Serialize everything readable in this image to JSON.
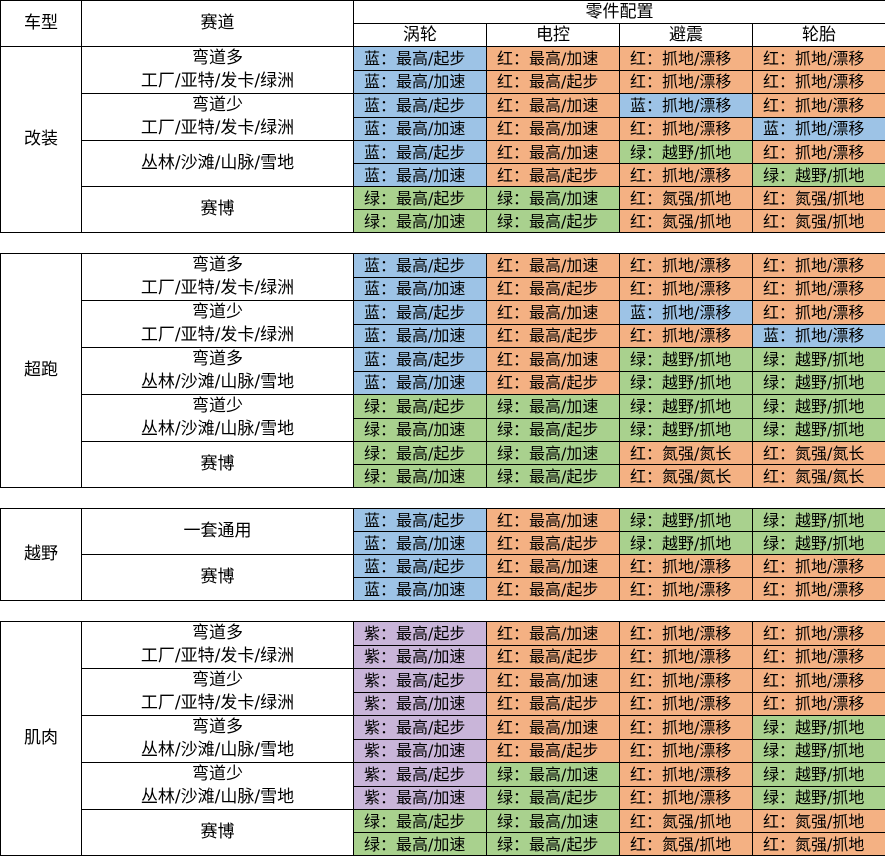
{
  "header": {
    "col_type": "车型",
    "col_track": "赛道",
    "col_parts": "零件配置",
    "parts": [
      "涡轮",
      "电控",
      "避震",
      "轮胎"
    ]
  },
  "sections": [
    {
      "name": "改装",
      "groups": [
        {
          "track": [
            "弯道多",
            "工厂/亚特/发卡/绿洲"
          ],
          "rows": [
            [
              [
                "blue",
                "蓝",
                "最高/起步"
              ],
              [
                "red",
                "红",
                "最高/加速"
              ],
              [
                "red",
                "红",
                "抓地/漂移"
              ],
              [
                "red",
                "红",
                "抓地/漂移"
              ]
            ],
            [
              [
                "blue",
                "蓝",
                "最高/加速"
              ],
              [
                "red",
                "红",
                "最高/起步"
              ],
              [
                "red",
                "红",
                "抓地/漂移"
              ],
              [
                "red",
                "红",
                "抓地/漂移"
              ]
            ]
          ]
        },
        {
          "track": [
            "弯道少",
            "工厂/亚特/发卡/绿洲"
          ],
          "rows": [
            [
              [
                "blue",
                "蓝",
                "最高/起步"
              ],
              [
                "red",
                "红",
                "最高/加速"
              ],
              [
                "blue",
                "蓝",
                "抓地/漂移"
              ],
              [
                "red",
                "红",
                "抓地/漂移"
              ]
            ],
            [
              [
                "blue",
                "蓝",
                "最高/加速"
              ],
              [
                "red",
                "红",
                "最高/加速"
              ],
              [
                "red",
                "红",
                "抓地/漂移"
              ],
              [
                "blue",
                "蓝",
                "抓地/漂移"
              ]
            ]
          ]
        },
        {
          "track": [
            "丛林/沙滩/山脉/雪地"
          ],
          "rows": [
            [
              [
                "blue",
                "蓝",
                "最高/起步"
              ],
              [
                "red",
                "红",
                "最高/加速"
              ],
              [
                "green",
                "绿",
                "越野/抓地"
              ],
              [
                "red",
                "红",
                "抓地/漂移"
              ]
            ],
            [
              [
                "blue",
                "蓝",
                "最高/加速"
              ],
              [
                "red",
                "红",
                "最高/起步"
              ],
              [
                "red",
                "红",
                "抓地/漂移"
              ],
              [
                "green",
                "绿",
                "越野/抓地"
              ]
            ]
          ]
        },
        {
          "track": [
            "赛博"
          ],
          "rows": [
            [
              [
                "green",
                "绿",
                "最高/起步"
              ],
              [
                "green",
                "绿",
                "最高/加速"
              ],
              [
                "red",
                "红",
                "氮强/抓地"
              ],
              [
                "red",
                "红",
                "氮强/抓地"
              ]
            ],
            [
              [
                "green",
                "绿",
                "最高/加速"
              ],
              [
                "green",
                "绿",
                "最高/起步"
              ],
              [
                "red",
                "红",
                "氮强/抓地"
              ],
              [
                "red",
                "红",
                "氮强/抓地"
              ]
            ]
          ]
        }
      ]
    },
    {
      "name": "超跑",
      "groups": [
        {
          "track": [
            "弯道多",
            "工厂/亚特/发卡/绿洲"
          ],
          "rows": [
            [
              [
                "blue",
                "蓝",
                "最高/起步"
              ],
              [
                "red",
                "红",
                "最高/加速"
              ],
              [
                "red",
                "红",
                "抓地/漂移"
              ],
              [
                "red",
                "红",
                "抓地/漂移"
              ]
            ],
            [
              [
                "blue",
                "蓝",
                "最高/加速"
              ],
              [
                "red",
                "红",
                "最高/起步"
              ],
              [
                "red",
                "红",
                "抓地/漂移"
              ],
              [
                "red",
                "红",
                "抓地/漂移"
              ]
            ]
          ]
        },
        {
          "track": [
            "弯道少",
            "工厂/亚特/发卡/绿洲"
          ],
          "rows": [
            [
              [
                "blue",
                "蓝",
                "最高/起步"
              ],
              [
                "red",
                "红",
                "最高/加速"
              ],
              [
                "blue",
                "蓝",
                "抓地/漂移"
              ],
              [
                "red",
                "红",
                "抓地/漂移"
              ]
            ],
            [
              [
                "blue",
                "蓝",
                "最高/加速"
              ],
              [
                "red",
                "红",
                "最高/起步"
              ],
              [
                "red",
                "红",
                "抓地/漂移"
              ],
              [
                "blue",
                "蓝",
                "抓地/漂移"
              ]
            ]
          ]
        },
        {
          "track": [
            "弯道多",
            "丛林/沙滩/山脉/雪地"
          ],
          "rows": [
            [
              [
                "blue",
                "蓝",
                "最高/起步"
              ],
              [
                "red",
                "红",
                "最高/加速"
              ],
              [
                "green",
                "绿",
                "越野/抓地"
              ],
              [
                "green",
                "绿",
                "越野/抓地"
              ]
            ],
            [
              [
                "blue",
                "蓝",
                "最高/加速"
              ],
              [
                "red",
                "红",
                "最高/起步"
              ],
              [
                "green",
                "绿",
                "越野/抓地"
              ],
              [
                "green",
                "绿",
                "越野/抓地"
              ]
            ]
          ]
        },
        {
          "track": [
            "弯道少",
            "丛林/沙滩/山脉/雪地"
          ],
          "rows": [
            [
              [
                "green",
                "绿",
                "最高/起步"
              ],
              [
                "green",
                "绿",
                "最高/加速"
              ],
              [
                "green",
                "绿",
                "越野/抓地"
              ],
              [
                "green",
                "绿",
                "越野/抓地"
              ]
            ],
            [
              [
                "green",
                "绿",
                "最高/加速"
              ],
              [
                "green",
                "绿",
                "最高/起步"
              ],
              [
                "green",
                "绿",
                "越野/抓地"
              ],
              [
                "green",
                "绿",
                "越野/抓地"
              ]
            ]
          ]
        },
        {
          "track": [
            "赛博"
          ],
          "rows": [
            [
              [
                "green",
                "绿",
                "最高/起步"
              ],
              [
                "green",
                "绿",
                "最高/加速"
              ],
              [
                "red",
                "红",
                "氮强/氮长"
              ],
              [
                "red",
                "红",
                "氮强/氮长"
              ]
            ],
            [
              [
                "green",
                "绿",
                "最高/加速"
              ],
              [
                "green",
                "绿",
                "最高/起步"
              ],
              [
                "red",
                "红",
                "氮强/氮长"
              ],
              [
                "red",
                "红",
                "氮强/氮长"
              ]
            ]
          ]
        }
      ]
    },
    {
      "name": "越野",
      "groups": [
        {
          "track": [
            "一套通用"
          ],
          "rows": [
            [
              [
                "blue",
                "蓝",
                "最高/起步"
              ],
              [
                "red",
                "红",
                "最高/加速"
              ],
              [
                "green",
                "绿",
                "越野/抓地"
              ],
              [
                "green",
                "绿",
                "越野/抓地"
              ]
            ],
            [
              [
                "blue",
                "蓝",
                "最高/加速"
              ],
              [
                "red",
                "红",
                "最高/起步"
              ],
              [
                "green",
                "绿",
                "越野/抓地"
              ],
              [
                "green",
                "绿",
                "越野/抓地"
              ]
            ]
          ]
        },
        {
          "track": [
            "赛博"
          ],
          "rows": [
            [
              [
                "blue",
                "蓝",
                "最高/起步"
              ],
              [
                "red",
                "红",
                "最高/加速"
              ],
              [
                "red",
                "红",
                "抓地/漂移"
              ],
              [
                "red",
                "红",
                "抓地/漂移"
              ]
            ],
            [
              [
                "blue",
                "蓝",
                "最高/加速"
              ],
              [
                "red",
                "红",
                "最高/起步"
              ],
              [
                "red",
                "红",
                "抓地/漂移"
              ],
              [
                "red",
                "红",
                "抓地/漂移"
              ]
            ]
          ]
        }
      ]
    },
    {
      "name": "肌肉",
      "groups": [
        {
          "track": [
            "弯道多",
            "工厂/亚特/发卡/绿洲"
          ],
          "rows": [
            [
              [
                "purple",
                "紫",
                "最高/起步"
              ],
              [
                "red",
                "红",
                "最高/加速"
              ],
              [
                "red",
                "红",
                "抓地/漂移"
              ],
              [
                "red",
                "红",
                "抓地/漂移"
              ]
            ],
            [
              [
                "purple",
                "紫",
                "最高/加速"
              ],
              [
                "red",
                "红",
                "最高/起步"
              ],
              [
                "red",
                "红",
                "抓地/漂移"
              ],
              [
                "red",
                "红",
                "抓地/漂移"
              ]
            ]
          ]
        },
        {
          "track": [
            "弯道少",
            "工厂/亚特/发卡/绿洲"
          ],
          "rows": [
            [
              [
                "purple",
                "紫",
                "最高/起步"
              ],
              [
                "red",
                "红",
                "最高/加速"
              ],
              [
                "red",
                "红",
                "抓地/漂移"
              ],
              [
                "red",
                "红",
                "抓地/漂移"
              ]
            ],
            [
              [
                "purple",
                "紫",
                "最高/加速"
              ],
              [
                "red",
                "红",
                "最高/起步"
              ],
              [
                "red",
                "红",
                "抓地/漂移"
              ],
              [
                "red",
                "红",
                "抓地/漂移"
              ]
            ]
          ]
        },
        {
          "track": [
            "弯道多",
            "丛林/沙滩/山脉/雪地"
          ],
          "rows": [
            [
              [
                "purple",
                "紫",
                "最高/起步"
              ],
              [
                "red",
                "红",
                "最高/加速"
              ],
              [
                "red",
                "红",
                "抓地/漂移"
              ],
              [
                "green",
                "绿",
                "越野/抓地"
              ]
            ],
            [
              [
                "purple",
                "紫",
                "最高/加速"
              ],
              [
                "red",
                "红",
                "最高/起步"
              ],
              [
                "red",
                "红",
                "抓地/漂移"
              ],
              [
                "green",
                "绿",
                "越野/抓地"
              ]
            ]
          ]
        },
        {
          "track": [
            "弯道少",
            "丛林/沙滩/山脉/雪地"
          ],
          "rows": [
            [
              [
                "purple",
                "紫",
                "最高/起步"
              ],
              [
                "green",
                "绿",
                "最高/加速"
              ],
              [
                "red",
                "红",
                "抓地/漂移"
              ],
              [
                "green",
                "绿",
                "越野/抓地"
              ]
            ],
            [
              [
                "purple",
                "紫",
                "最高/加速"
              ],
              [
                "green",
                "绿",
                "最高/起步"
              ],
              [
                "red",
                "红",
                "抓地/漂移"
              ],
              [
                "green",
                "绿",
                "越野/抓地"
              ]
            ]
          ]
        },
        {
          "track": [
            "赛博"
          ],
          "rows": [
            [
              [
                "green",
                "绿",
                "最高/起步"
              ],
              [
                "green",
                "绿",
                "最高/加速"
              ],
              [
                "red",
                "红",
                "氮强/抓地"
              ],
              [
                "red",
                "红",
                "氮强/抓地"
              ]
            ],
            [
              [
                "green",
                "绿",
                "最高/加速"
              ],
              [
                "green",
                "绿",
                "最高/起步"
              ],
              [
                "red",
                "红",
                "氮强/抓地"
              ],
              [
                "red",
                "红",
                "氮强/抓地"
              ]
            ]
          ]
        }
      ]
    }
  ],
  "separator": "：",
  "colors": {
    "blue": "#9dc3e6",
    "red": "#f4b183",
    "green": "#a9d18e",
    "purple": "#c9b5d9"
  }
}
